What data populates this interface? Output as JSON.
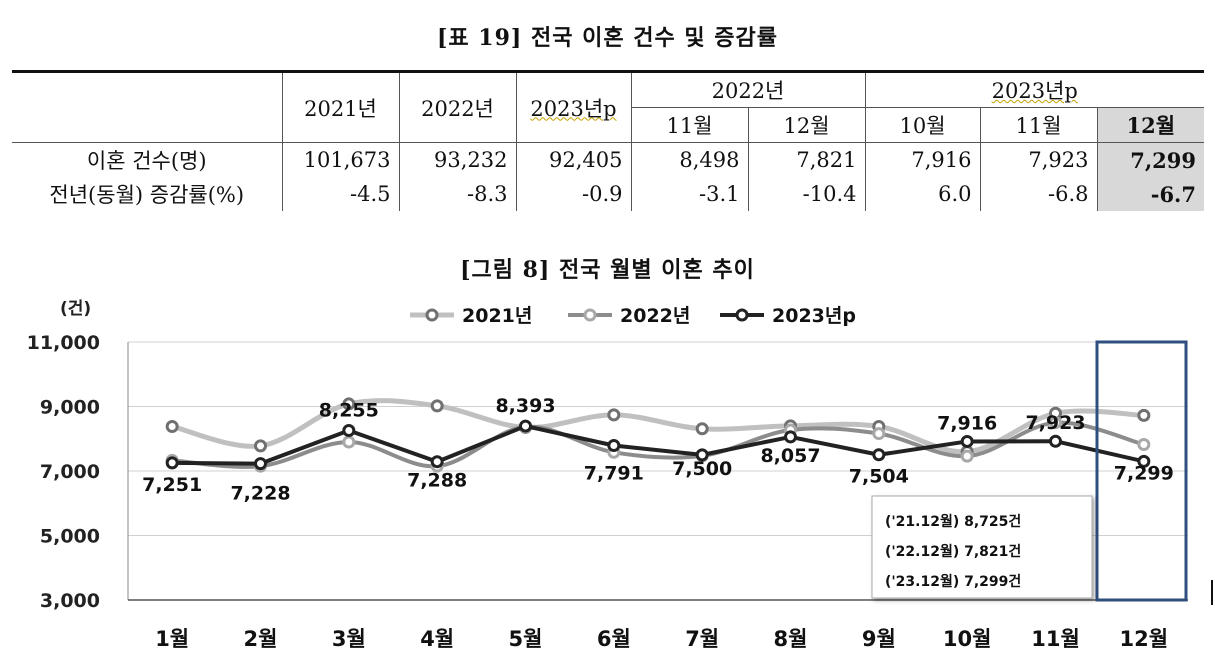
{
  "table": {
    "title": "[표 19] 전국 이혼 건수 및 증감률",
    "headers": {
      "y2021": "2021년",
      "y2022": "2022년",
      "y2023": "2023년p",
      "group2022": "2022년",
      "group2023": "2023년p",
      "m11a": "11월",
      "m12a": "12월",
      "m10": "10월",
      "m11b": "11월",
      "m12b": "12월"
    },
    "rows": [
      {
        "label": "이혼 건수(명)",
        "cells": [
          "101,673",
          "93,232",
          "92,405",
          "8,498",
          "7,821",
          "7,916",
          "7,923",
          "7,299"
        ]
      },
      {
        "label": "전년(동월) 증감률(%)",
        "cells": [
          "-4.5",
          "-8.3",
          "-0.9",
          "-3.1",
          "-10.4",
          "6.0",
          "-6.8",
          "-6.7"
        ]
      }
    ]
  },
  "chart_data": {
    "type": "line",
    "title": "[그림 8] 전국 월별 이혼 추이",
    "unit_label": "(건)",
    "categories": [
      "1월",
      "2월",
      "3월",
      "4월",
      "5월",
      "6월",
      "7월",
      "8월",
      "9월",
      "10월",
      "11월",
      "12월"
    ],
    "ylim": [
      3000,
      11000
    ],
    "yticks": [
      "3,000",
      "5,000",
      "7,000",
      "9,000",
      "11,000"
    ],
    "ytick_values": [
      3000,
      5000,
      7000,
      9000,
      11000
    ],
    "grid": true,
    "legend_position": "top",
    "series": [
      {
        "name": "2021년",
        "color": "#c0c0c0",
        "marker": "#707070",
        "values": [
          8380,
          7780,
          9080,
          9020,
          8350,
          8740,
          8310,
          8400,
          8380,
          7600,
          8790,
          8725
        ]
      },
      {
        "name": "2022년",
        "color": "#8c8c8c",
        "marker": "#a8a8a8",
        "values": [
          7330,
          7150,
          7900,
          7150,
          8370,
          7580,
          7470,
          8270,
          8160,
          7460,
          8498,
          7821
        ]
      },
      {
        "name": "2023년p",
        "color": "#222222",
        "marker": "#222222",
        "values": [
          7251,
          7228,
          8255,
          7288,
          8393,
          7791,
          7500,
          8057,
          7504,
          7916,
          7923,
          7299
        ]
      }
    ],
    "data_labels": [
      "7,251",
      "7,228",
      "8,255",
      "7,288",
      "8,393",
      "7,791",
      "7,500",
      "8,057",
      "7,504",
      "7,916",
      "7,923",
      "7,299"
    ],
    "annotation_box": [
      "('21.12월)  8,725건",
      "('22.12월)  7,821건",
      "('23.12월)  7,299건"
    ]
  }
}
